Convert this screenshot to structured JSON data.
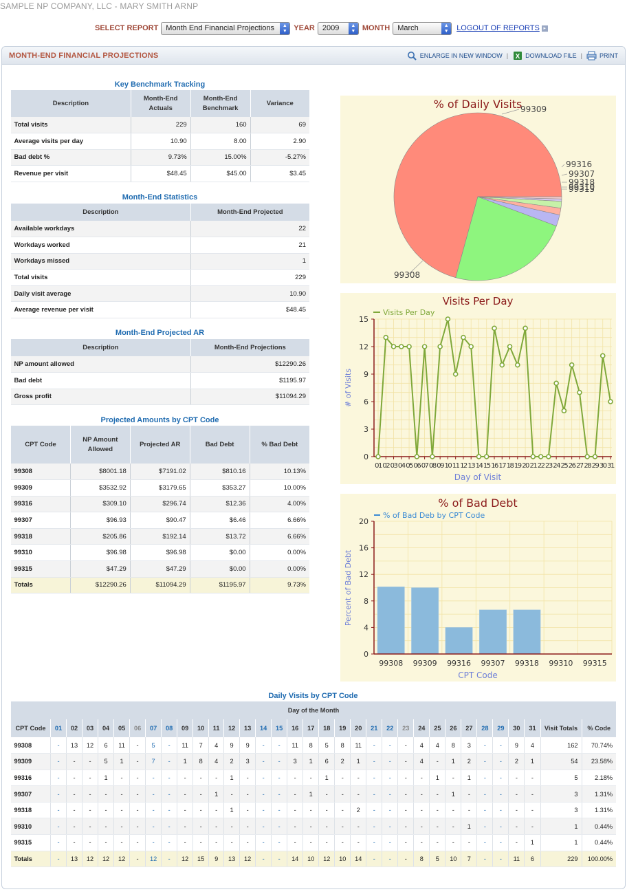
{
  "company": "SAMPLE NP COMPANY, LLC  -  MARY SMITH ARNP",
  "controls": {
    "select_report_label": "SELECT REPORT",
    "report_value": "Month End Financial Projections",
    "year_label": "YEAR",
    "year_value": "2009",
    "month_label": "MONTH",
    "month_value": "March",
    "logout_label": "LOGOUT OF REPORTS"
  },
  "panel": {
    "title": "MONTH-END FINANCIAL PROJECTIONS",
    "enlarge": "ENLARGE IN NEW WINDOW",
    "download": "DOWNLOAD FILE",
    "print": "PRINT"
  },
  "benchmark": {
    "title": "Key Benchmark Tracking",
    "headers": [
      "Description",
      "Month-End Actuals",
      "Month-End Benchmark",
      "Variance"
    ],
    "rows": [
      [
        "Total visits",
        "229",
        "160",
        "69"
      ],
      [
        "Average visits per day",
        "10.90",
        "8.00",
        "2.90"
      ],
      [
        "Bad debt %",
        "9.73%",
        "15.00%",
        "-5.27%"
      ],
      [
        "Revenue per visit",
        "$48.45",
        "$45.00",
        "$3.45"
      ]
    ]
  },
  "stats": {
    "title": "Month-End Statistics",
    "headers": [
      "Description",
      "Month-End Projected"
    ],
    "rows": [
      [
        "Available workdays",
        "22"
      ],
      [
        "Workdays worked",
        "21"
      ],
      [
        "Workdays missed",
        "1"
      ],
      [
        "Total visits",
        "229"
      ],
      [
        "Daily visit average",
        "10.90"
      ],
      [
        "Average revenue per visit",
        "$48.45"
      ]
    ]
  },
  "ar": {
    "title": "Month-End Projected AR",
    "headers": [
      "Description",
      "Month-End Projections"
    ],
    "rows": [
      [
        "NP amount allowed",
        "$12290.26"
      ],
      [
        "Bad debt",
        "$1195.97"
      ],
      [
        "Gross profit",
        "$11094.29"
      ]
    ]
  },
  "cpt": {
    "title": "Projected Amounts by CPT Code",
    "headers": [
      "CPT Code",
      "NP Amount Allowed",
      "Projected AR",
      "Bad Debt",
      "% Bad Debt"
    ],
    "rows": [
      [
        "99308",
        "$8001.18",
        "$7191.02",
        "$810.16",
        "10.13%"
      ],
      [
        "99309",
        "$3532.92",
        "$3179.65",
        "$353.27",
        "10.00%"
      ],
      [
        "99316",
        "$309.10",
        "$296.74",
        "$12.36",
        "4.00%"
      ],
      [
        "99307",
        "$96.93",
        "$90.47",
        "$6.46",
        "6.66%"
      ],
      [
        "99318",
        "$205.86",
        "$192.14",
        "$13.72",
        "6.66%"
      ],
      [
        "99310",
        "$96.98",
        "$96.98",
        "$0.00",
        "0.00%"
      ],
      [
        "99315",
        "$47.29",
        "$47.29",
        "$0.00",
        "0.00%"
      ]
    ],
    "totals": [
      "Totals",
      "$12290.26",
      "$11094.29",
      "$1195.97",
      "9.73%"
    ]
  },
  "chart_data": [
    {
      "type": "pie",
      "title": "% of Daily Visits",
      "categories": [
        "99308",
        "99309",
        "99316",
        "99307",
        "99318",
        "99310",
        "99315"
      ],
      "values": [
        162,
        54,
        5,
        3,
        3,
        1,
        1
      ],
      "colors": [
        "#ff8a7a",
        "#8ef57e",
        "#b9b6f2",
        "#ffb0a0",
        "#c6f2a8",
        "#d8c8f0",
        "#f0c8c8"
      ]
    },
    {
      "type": "line",
      "title": "Visits Per Day",
      "legend": "Visits Per Day",
      "xlabel": "Day of Visit",
      "ylabel": "# of Visits",
      "ylim": [
        0,
        15
      ],
      "yticks": [
        0,
        3,
        6,
        9,
        12,
        15
      ],
      "x": [
        "01",
        "02",
        "03",
        "04",
        "05",
        "06",
        "07",
        "08",
        "09",
        "10",
        "11",
        "12",
        "13",
        "14",
        "15",
        "16",
        "17",
        "18",
        "19",
        "20",
        "21",
        "22",
        "23",
        "24",
        "25",
        "26",
        "27",
        "28",
        "29",
        "30",
        "31"
      ],
      "values": [
        0,
        13,
        12,
        12,
        12,
        0,
        12,
        0,
        12,
        15,
        9,
        13,
        12,
        0,
        0,
        14,
        10,
        12,
        10,
        14,
        0,
        0,
        0,
        8,
        5,
        10,
        7,
        0,
        0,
        11,
        6
      ],
      "color": "#7fa83a"
    },
    {
      "type": "bar",
      "title": "% of Bad Debt",
      "legend": "% of Bad Deb by CPT Code",
      "xlabel": "CPT Code",
      "ylabel": "Percent of Bad Debt",
      "ylim": [
        0,
        20
      ],
      "yticks": [
        0,
        4,
        8,
        12,
        16,
        20
      ],
      "categories": [
        "99308",
        "99309",
        "99316",
        "99307",
        "99318",
        "99310",
        "99315"
      ],
      "values": [
        10.13,
        10.0,
        4.0,
        6.66,
        6.66,
        0,
        0
      ],
      "color": "#8bbadc"
    }
  ],
  "daily": {
    "title": "Daily Visits by CPT Code",
    "group_header": "Day of the Month",
    "code_header": "CPT Code",
    "days": [
      "01",
      "02",
      "03",
      "04",
      "05",
      "06",
      "07",
      "08",
      "09",
      "10",
      "11",
      "12",
      "13",
      "14",
      "15",
      "16",
      "17",
      "18",
      "19",
      "20",
      "21",
      "22",
      "23",
      "24",
      "25",
      "26",
      "27",
      "28",
      "29",
      "30",
      "31"
    ],
    "day_style": [
      "b",
      "",
      "",
      "",
      "",
      "g",
      "b",
      "b",
      "",
      "",
      "",
      "",
      "",
      "b",
      "b",
      "",
      "",
      "",
      "",
      "",
      "b",
      "b",
      "g",
      "",
      "",
      "",
      "",
      "b",
      "b",
      "",
      ""
    ],
    "visit_totals_header": "Visit Totals",
    "pct_header": "% Code",
    "rows": [
      {
        "code": "99308",
        "vals": [
          "-",
          "13",
          "12",
          "6",
          "11",
          "-",
          "5",
          "-",
          "11",
          "7",
          "4",
          "9",
          "9",
          "-",
          "-",
          "11",
          "8",
          "5",
          "8",
          "11",
          "-",
          "-",
          "-",
          "4",
          "4",
          "8",
          "3",
          "-",
          "-",
          "9",
          "4"
        ],
        "total": "162",
        "pct": "70.74%"
      },
      {
        "code": "99309",
        "vals": [
          "-",
          "-",
          "-",
          "5",
          "1",
          "-",
          "7",
          "-",
          "1",
          "8",
          "4",
          "2",
          "3",
          "-",
          "-",
          "3",
          "1",
          "6",
          "2",
          "1",
          "-",
          "-",
          "-",
          "4",
          "-",
          "1",
          "2",
          "-",
          "-",
          "2",
          "1"
        ],
        "total": "54",
        "pct": "23.58%"
      },
      {
        "code": "99316",
        "vals": [
          "-",
          "-",
          "-",
          "1",
          "-",
          "-",
          "-",
          "-",
          "-",
          "-",
          "-",
          "1",
          "-",
          "-",
          "-",
          "-",
          "-",
          "1",
          "-",
          "-",
          "-",
          "-",
          "-",
          "-",
          "1",
          "-",
          "1",
          "-",
          "-",
          "-",
          "-"
        ],
        "total": "5",
        "pct": "2.18%"
      },
      {
        "code": "99307",
        "vals": [
          "-",
          "-",
          "-",
          "-",
          "-",
          "-",
          "-",
          "-",
          "-",
          "-",
          "1",
          "-",
          "-",
          "-",
          "-",
          "-",
          "1",
          "-",
          "-",
          "-",
          "-",
          "-",
          "-",
          "-",
          "-",
          "1",
          "-",
          "-",
          "-",
          "-",
          "-"
        ],
        "total": "3",
        "pct": "1.31%"
      },
      {
        "code": "99318",
        "vals": [
          "-",
          "-",
          "-",
          "-",
          "-",
          "-",
          "-",
          "-",
          "-",
          "-",
          "-",
          "1",
          "-",
          "-",
          "-",
          "-",
          "-",
          "-",
          "-",
          "2",
          "-",
          "-",
          "-",
          "-",
          "-",
          "-",
          "-",
          "-",
          "-",
          "-",
          "-"
        ],
        "total": "3",
        "pct": "1.31%"
      },
      {
        "code": "99310",
        "vals": [
          "-",
          "-",
          "-",
          "-",
          "-",
          "-",
          "-",
          "-",
          "-",
          "-",
          "-",
          "-",
          "-",
          "-",
          "-",
          "-",
          "-",
          "-",
          "-",
          "-",
          "-",
          "-",
          "-",
          "-",
          "-",
          "-",
          "1",
          "-",
          "-",
          "-",
          "-"
        ],
        "total": "1",
        "pct": "0.44%"
      },
      {
        "code": "99315",
        "vals": [
          "-",
          "-",
          "-",
          "-",
          "-",
          "-",
          "-",
          "-",
          "-",
          "-",
          "-",
          "-",
          "-",
          "-",
          "-",
          "-",
          "-",
          "-",
          "-",
          "-",
          "-",
          "-",
          "-",
          "-",
          "-",
          "-",
          "-",
          "-",
          "-",
          "-",
          "1"
        ],
        "total": "1",
        "pct": "0.44%"
      }
    ],
    "totals": {
      "code": "Totals",
      "vals": [
        "-",
        "13",
        "12",
        "12",
        "12",
        "-",
        "12",
        "-",
        "12",
        "15",
        "9",
        "13",
        "12",
        "-",
        "-",
        "14",
        "10",
        "12",
        "10",
        "14",
        "-",
        "-",
        "-",
        "8",
        "5",
        "10",
        "7",
        "-",
        "-",
        "11",
        "6"
      ],
      "total": "229",
      "pct": "100.00%"
    }
  }
}
